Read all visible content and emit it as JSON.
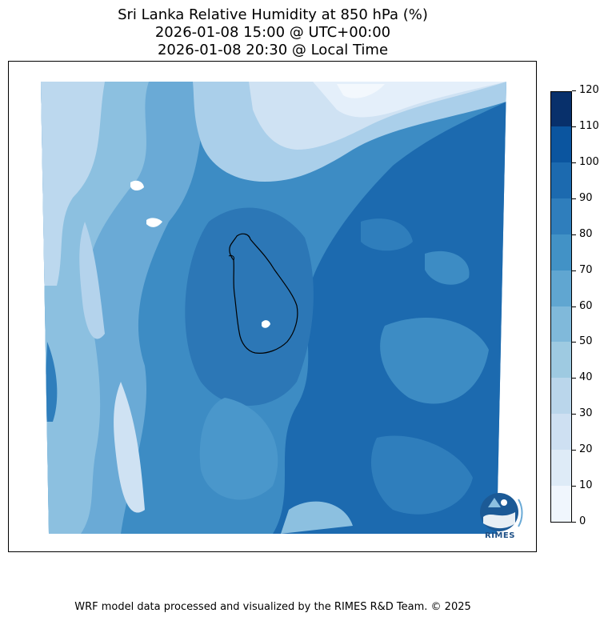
{
  "title": {
    "line1": "Sri Lanka Relative Humidity at 850 hPa (%)",
    "line2": "2026-01-08 15:00 @ UTC+00:00",
    "line3": "2026-01-08 20:30 @ Local Time"
  },
  "colorbar": {
    "ticks": [
      "0",
      "10",
      "20",
      "30",
      "40",
      "50",
      "60",
      "70",
      "80",
      "90",
      "100",
      "110",
      "120"
    ],
    "colors": [
      "#f0f6fd",
      "#deebf7",
      "#cee0f2",
      "#bad6eb",
      "#9ecae1",
      "#80b9da",
      "#60a6d1",
      "#4292c6",
      "#2f7ebc",
      "#1c6aaf",
      "#0b559f",
      "#08306b"
    ]
  },
  "logo": {
    "text": "RIMES",
    "icon": "rimes-logo-icon"
  },
  "credit": "WRF model data processed and visualized by the RIMES R&D Team. © 2025"
}
